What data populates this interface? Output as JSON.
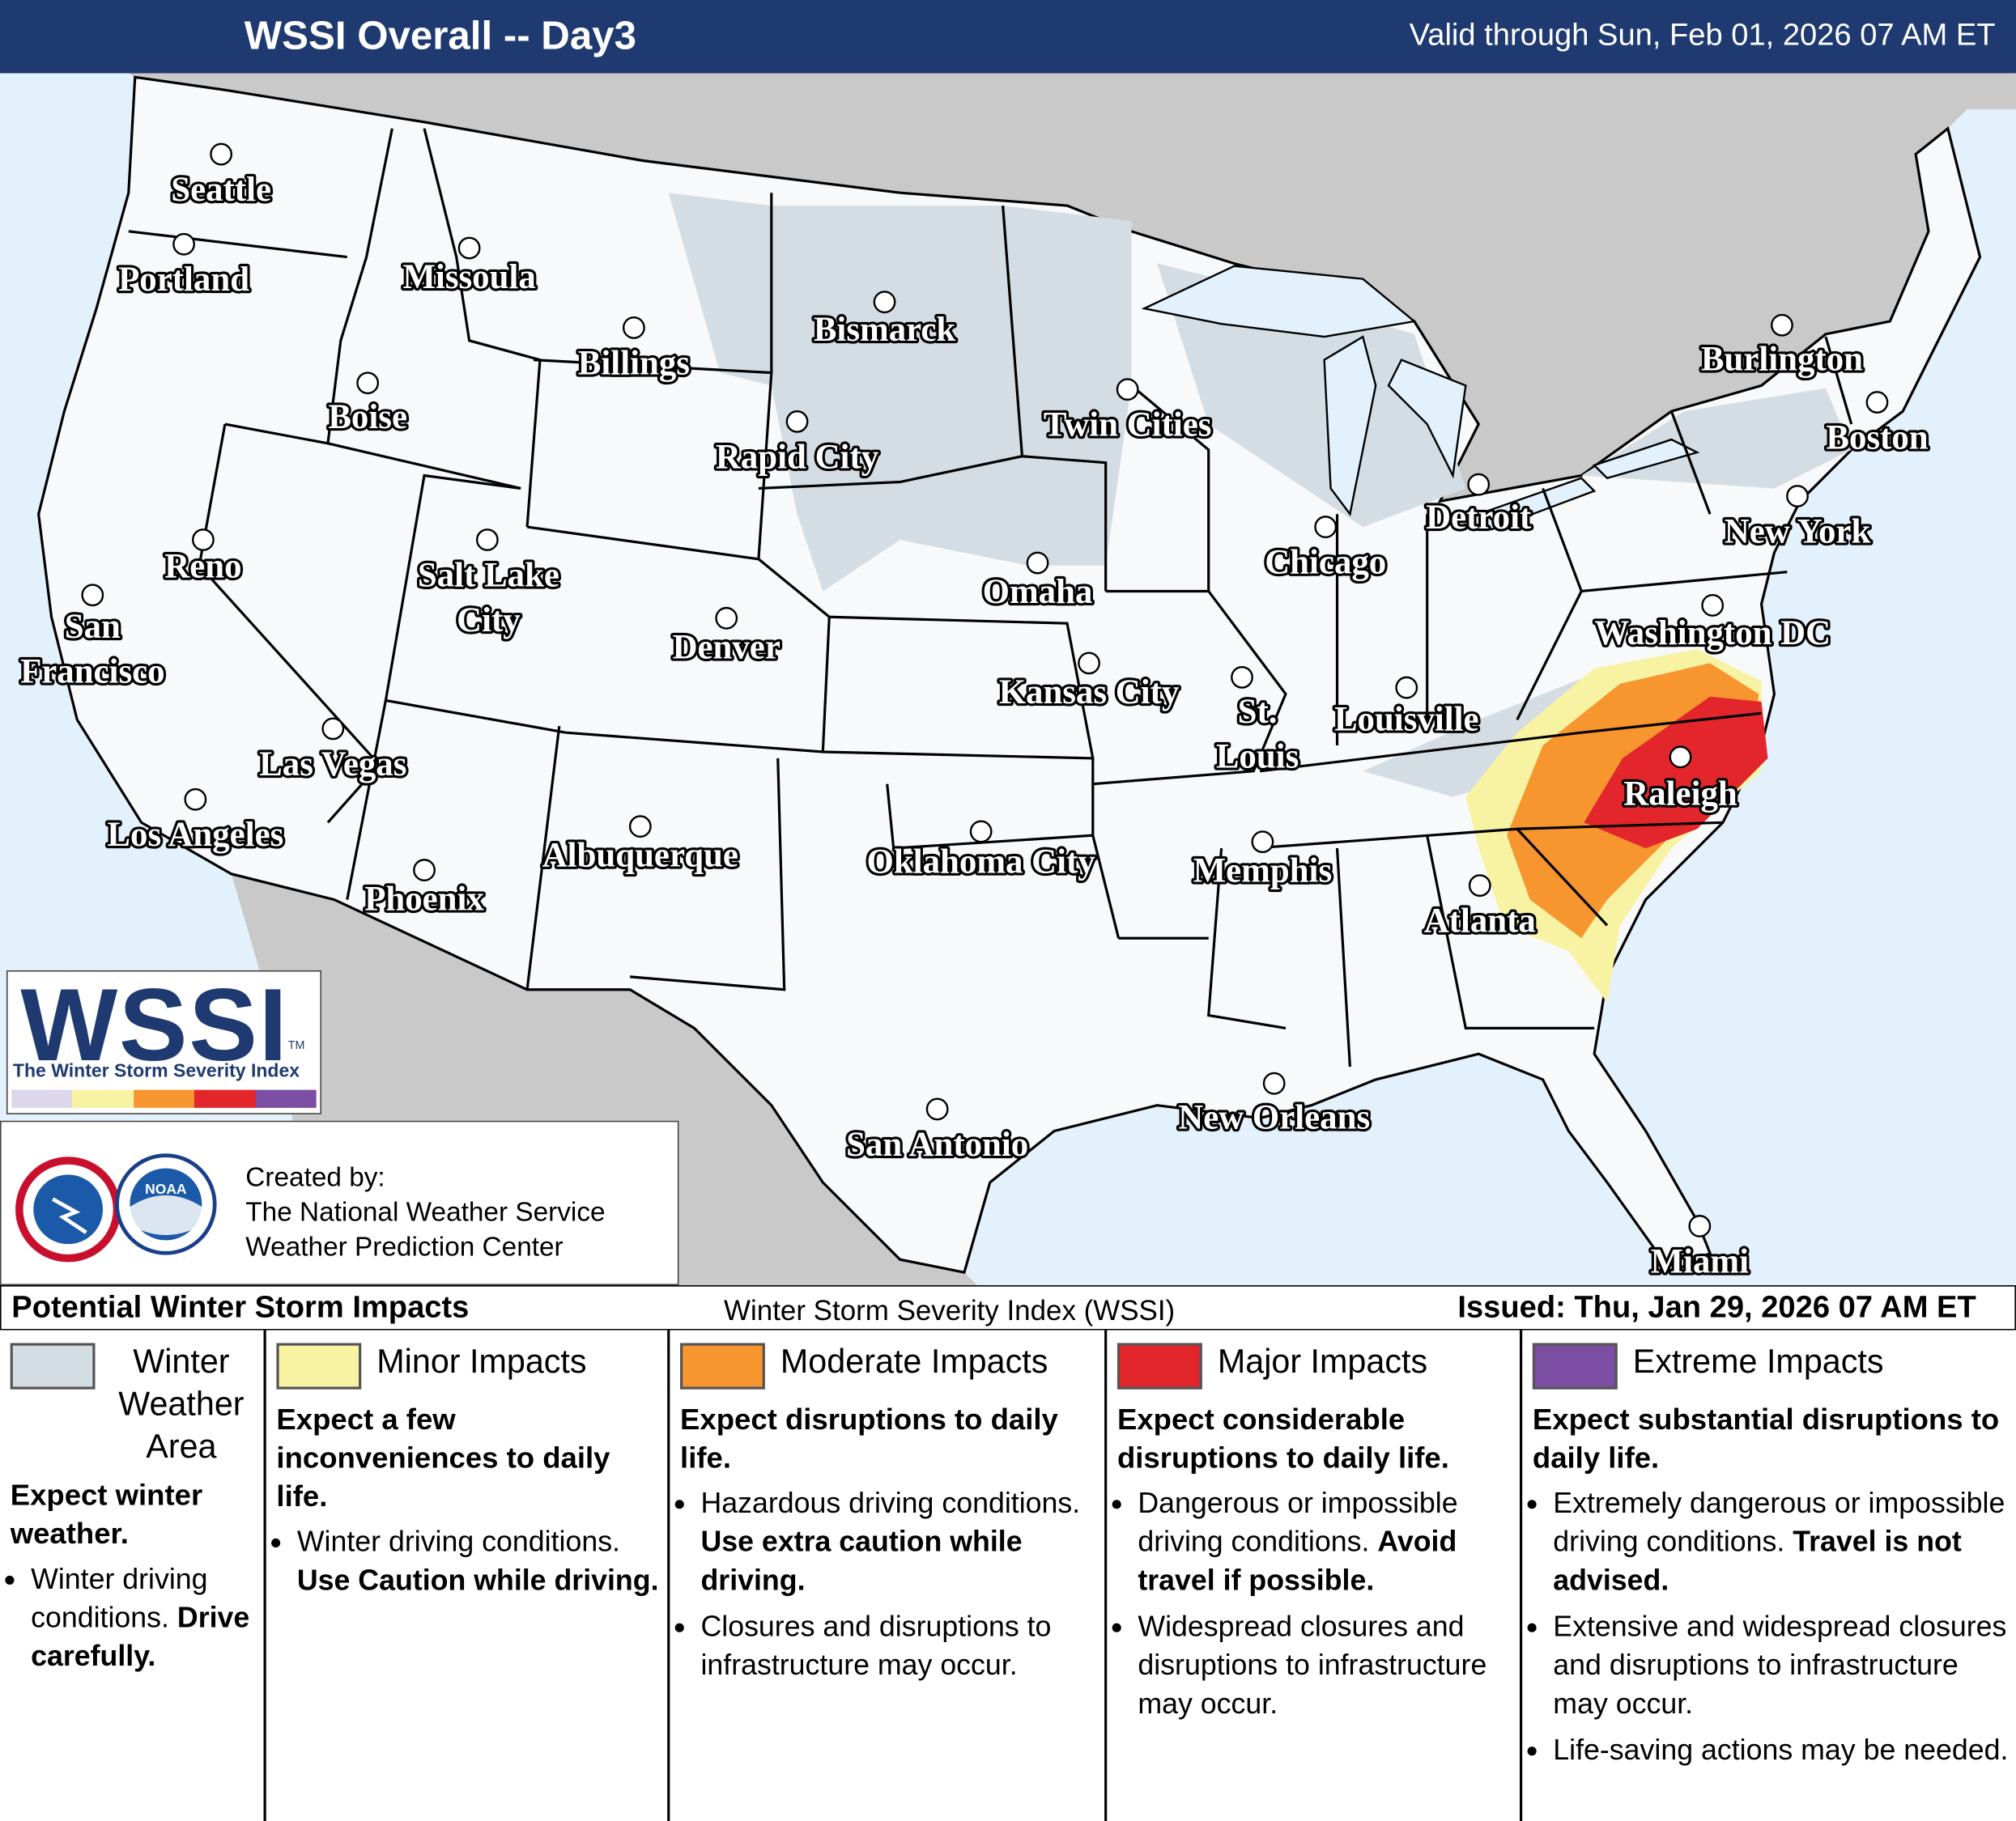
{
  "header": {
    "title": "WSSI Overall -- Day3",
    "valid": "Valid through Sun, Feb 01, 2026 07 AM ET"
  },
  "map": {
    "cities": [
      "Seattle",
      "Portland",
      "Missoula",
      "Billings",
      "Bismarck",
      "Boise",
      "Rapid City",
      "Twin Cities",
      "Burlington",
      "Boston",
      "Reno",
      "Salt Lake City",
      "Detroit",
      "Chicago",
      "New York",
      "Omaha",
      "Denver",
      "San Francisco",
      "Washington DC",
      "Kansas City",
      "St. Louis",
      "Louisville",
      "Las Vegas",
      "Los Angeles",
      "Raleigh",
      "Albuquerque",
      "Oklahoma City",
      "Memphis",
      "Phoenix",
      "Atlanta",
      "New Orleans",
      "San Antonio",
      "Miami"
    ]
  },
  "logo": {
    "name": "WSSI",
    "trademark": "TM",
    "subtitle": "The Winter Storm Severity Index"
  },
  "credits": {
    "noaa": "NOAA",
    "lines": [
      "Created by:",
      "The National Weather Service",
      "Weather Prediction Center"
    ]
  },
  "legend": {
    "title": "Potential Winter Storm Impacts",
    "index": "Winter Storm Severity Index (WSSI)",
    "issued": "Issued: Thu, Jan 29, 2026 07 AM ET",
    "columns": [
      {
        "label": "Winter Weather Area",
        "color": "#d3dde3",
        "summary": "Expect winter weather.",
        "bullets": [
          {
            "text": "Winter driving conditions.",
            "emphasis": "Drive carefully."
          }
        ]
      },
      {
        "label": "Minor Impacts",
        "color": "#f8f3a3",
        "summary": "Expect a few inconveniences to daily life.",
        "bullets": [
          {
            "text": "Winter driving conditions.",
            "emphasis": "Use Caution while driving."
          }
        ]
      },
      {
        "label": "Moderate Impacts",
        "color": "#f7952f",
        "summary": "Expect disruptions to daily life.",
        "bullets": [
          {
            "text": "Hazardous driving conditions.",
            "emphasis": "Use extra caution while driving."
          },
          {
            "text": "Closures and disruptions to infrastructure may occur."
          }
        ]
      },
      {
        "label": "Major Impacts",
        "color": "#e2262b",
        "summary": "Expect considerable disruptions to daily life.",
        "bullets": [
          {
            "text": "Dangerous or impossible driving conditions.",
            "emphasis": "Avoid travel if possible."
          },
          {
            "text": "Widespread closures and disruptions to infrastructure may occur."
          }
        ]
      },
      {
        "label": "Extreme Impacts",
        "color": "#7b4ea3",
        "summary": "Expect substantial disruptions to daily life.",
        "bullets": [
          {
            "text": "Extremely dangerous or impossible driving conditions.",
            "emphasis": "Travel is not advised."
          },
          {
            "text": "Extensive and widespread closures and disruptions to infrastructure may occur."
          },
          {
            "text": "Life-saving actions may be needed."
          }
        ]
      }
    ]
  }
}
